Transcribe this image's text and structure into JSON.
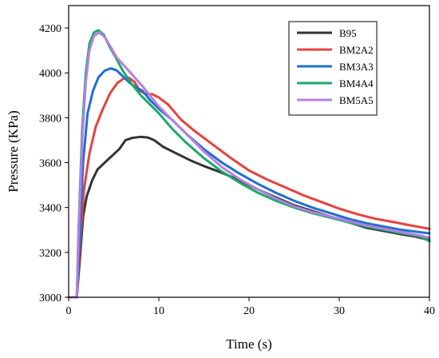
{
  "chart_data": {
    "type": "line",
    "xlabel": "Time (s)",
    "ylabel": "Pressure (KPa)",
    "xlim": [
      0,
      40
    ],
    "ylim": [
      3000,
      4300
    ],
    "xticks": [
      0,
      10,
      20,
      30,
      40
    ],
    "yticks": [
      3000,
      3200,
      3400,
      3600,
      3800,
      4000,
      4200
    ],
    "x_tick_labels": [
      "0",
      "10",
      "20",
      "30",
      "40"
    ],
    "y_tick_labels": [
      "3000",
      "3200",
      "3400",
      "3600",
      "3800",
      "4000",
      "4200"
    ],
    "grid": false,
    "legend_position": "top-right",
    "series": [
      {
        "name": "B95",
        "color": "#333333",
        "points": [
          [
            0,
            3000
          ],
          [
            0.9,
            3000
          ],
          [
            1.2,
            3150
          ],
          [
            1.6,
            3360
          ],
          [
            2,
            3450
          ],
          [
            2.6,
            3520
          ],
          [
            3.2,
            3570
          ],
          [
            4,
            3600
          ],
          [
            4.8,
            3630
          ],
          [
            5.6,
            3660
          ],
          [
            6.3,
            3700
          ],
          [
            7,
            3710
          ],
          [
            8,
            3715
          ],
          [
            8.8,
            3712
          ],
          [
            9.5,
            3700
          ],
          [
            10.5,
            3670
          ],
          [
            12,
            3640
          ],
          [
            13.5,
            3610
          ],
          [
            15,
            3585
          ],
          [
            17,
            3555
          ],
          [
            19,
            3520
          ],
          [
            21,
            3480
          ],
          [
            23,
            3445
          ],
          [
            25,
            3410
          ],
          [
            27,
            3385
          ],
          [
            29,
            3360
          ],
          [
            31,
            3335
          ],
          [
            33,
            3310
          ],
          [
            35,
            3295
          ],
          [
            37,
            3280
          ],
          [
            38.5,
            3270
          ],
          [
            40,
            3255
          ]
        ]
      },
      {
        "name": "BM2A2",
        "color": "#e8423f",
        "points": [
          [
            0,
            3000
          ],
          [
            0.9,
            3000
          ],
          [
            1.2,
            3200
          ],
          [
            1.7,
            3480
          ],
          [
            2.3,
            3640
          ],
          [
            3,
            3760
          ],
          [
            3.8,
            3840
          ],
          [
            4.6,
            3910
          ],
          [
            5.4,
            3955
          ],
          [
            6.1,
            3975
          ],
          [
            6.7,
            3978
          ],
          [
            7.3,
            3960
          ],
          [
            7.9,
            3920
          ],
          [
            8.6,
            3905
          ],
          [
            9.3,
            3905
          ],
          [
            10,
            3890
          ],
          [
            11,
            3860
          ],
          [
            12.5,
            3790
          ],
          [
            14,
            3740
          ],
          [
            16,
            3680
          ],
          [
            18,
            3620
          ],
          [
            20,
            3565
          ],
          [
            22,
            3525
          ],
          [
            24,
            3490
          ],
          [
            26,
            3455
          ],
          [
            28,
            3425
          ],
          [
            30,
            3395
          ],
          [
            32,
            3370
          ],
          [
            34,
            3350
          ],
          [
            36,
            3335
          ],
          [
            38,
            3320
          ],
          [
            40,
            3305
          ]
        ]
      },
      {
        "name": "BM3A3",
        "color": "#1f6fd1",
        "points": [
          [
            0,
            3000
          ],
          [
            0.9,
            3000
          ],
          [
            1.2,
            3250
          ],
          [
            1.6,
            3600
          ],
          [
            2.1,
            3820
          ],
          [
            2.7,
            3920
          ],
          [
            3.3,
            3980
          ],
          [
            4,
            4010
          ],
          [
            4.7,
            4020
          ],
          [
            5.3,
            4012
          ],
          [
            6,
            3985
          ],
          [
            6.8,
            3955
          ],
          [
            7.5,
            3935
          ],
          [
            8.2,
            3920
          ],
          [
            9,
            3880
          ],
          [
            10,
            3840
          ],
          [
            11.5,
            3790
          ],
          [
            13,
            3730
          ],
          [
            15,
            3660
          ],
          [
            17,
            3600
          ],
          [
            19,
            3550
          ],
          [
            21,
            3505
          ],
          [
            23,
            3465
          ],
          [
            25,
            3430
          ],
          [
            27,
            3400
          ],
          [
            29,
            3375
          ],
          [
            31,
            3350
          ],
          [
            33,
            3330
          ],
          [
            35,
            3315
          ],
          [
            37,
            3300
          ],
          [
            39,
            3290
          ],
          [
            40,
            3285
          ]
        ]
      },
      {
        "name": "BM4A4",
        "color": "#1aaa6a",
        "points": [
          [
            0,
            3000
          ],
          [
            0.9,
            3000
          ],
          [
            1.1,
            3300
          ],
          [
            1.5,
            3750
          ],
          [
            1.9,
            4000
          ],
          [
            2.3,
            4130
          ],
          [
            2.8,
            4180
          ],
          [
            3.3,
            4190
          ],
          [
            3.9,
            4170
          ],
          [
            4.5,
            4120
          ],
          [
            5.2,
            4070
          ],
          [
            6,
            4010
          ],
          [
            7,
            3950
          ],
          [
            8,
            3900
          ],
          [
            9,
            3860
          ],
          [
            10,
            3820
          ],
          [
            11.5,
            3750
          ],
          [
            13,
            3690
          ],
          [
            15,
            3620
          ],
          [
            17,
            3560
          ],
          [
            19,
            3510
          ],
          [
            21,
            3465
          ],
          [
            23,
            3430
          ],
          [
            25,
            3400
          ],
          [
            27,
            3375
          ],
          [
            29,
            3355
          ],
          [
            31,
            3335
          ],
          [
            33,
            3315
          ],
          [
            35,
            3300
          ],
          [
            37,
            3285
          ],
          [
            39,
            3270
          ],
          [
            40,
            3250
          ]
        ]
      },
      {
        "name": "BM5A5",
        "color": "#b87fe0",
        "points": [
          [
            0,
            3000
          ],
          [
            0.9,
            3000
          ],
          [
            1.1,
            3280
          ],
          [
            1.5,
            3700
          ],
          [
            1.9,
            3960
          ],
          [
            2.3,
            4100
          ],
          [
            2.8,
            4165
          ],
          [
            3.4,
            4180
          ],
          [
            4,
            4160
          ],
          [
            4.6,
            4120
          ],
          [
            5.3,
            4070
          ],
          [
            6.2,
            4030
          ],
          [
            7.2,
            3985
          ],
          [
            8.2,
            3940
          ],
          [
            9.2,
            3890
          ],
          [
            10,
            3850
          ],
          [
            11.5,
            3790
          ],
          [
            13,
            3730
          ],
          [
            15,
            3650
          ],
          [
            17,
            3580
          ],
          [
            19,
            3525
          ],
          [
            21,
            3480
          ],
          [
            23,
            3440
          ],
          [
            25,
            3405
          ],
          [
            27,
            3380
          ],
          [
            29,
            3360
          ],
          [
            31,
            3340
          ],
          [
            33,
            3320
          ],
          [
            35,
            3305
          ],
          [
            37,
            3290
          ],
          [
            39,
            3275
          ],
          [
            40,
            3265
          ]
        ]
      }
    ]
  }
}
